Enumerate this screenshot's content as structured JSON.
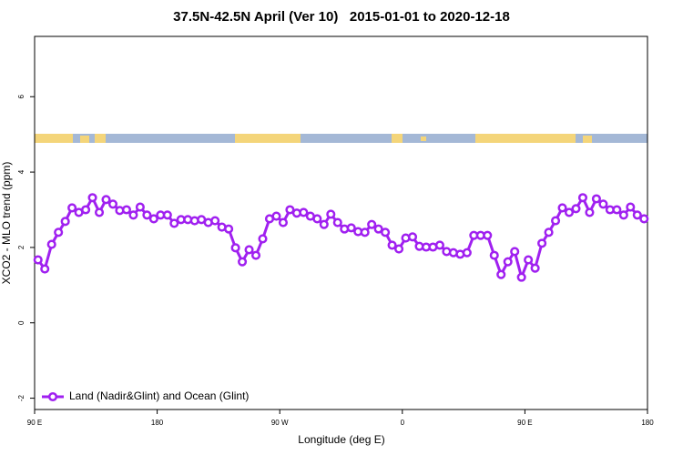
{
  "chart_data": {
    "type": "line",
    "title": "37.5N-42.5N April (Ver 10)   2015-01-01 to 2020-12-18",
    "x_label": "Longitude (deg E)",
    "y_label": "XCO2 - MLO trend (ppm)",
    "xlim": [
      90,
      540
    ],
    "xticks": [
      {
        "value": 90,
        "label": "90 E"
      },
      180,
      {
        "value": 270,
        "label": "90 W"
      },
      {
        "value": 360,
        "label": "0"
      },
      {
        "value": 450,
        "label": "90 E"
      },
      {
        "value": 540,
        "label": "180"
      }
    ],
    "ylim": [
      -2.3,
      7.6
    ],
    "yticks": [
      -2,
      0,
      2,
      4,
      6
    ],
    "legend": "bottom-left",
    "x": [
      92.5,
      97.5,
      102.5,
      107.5,
      112.5,
      117.5,
      122.5,
      127.5,
      132.5,
      137.5,
      142.5,
      147.5,
      152.5,
      157.5,
      162.5,
      167.5,
      172.5,
      177.5,
      182.5,
      187.5,
      192.5,
      197.5,
      202.5,
      207.5,
      212.5,
      217.5,
      222.5,
      227.5,
      232.5,
      237.5,
      242.5,
      247.5,
      252.5,
      257.5,
      262.5,
      267.5,
      272.5,
      277.5,
      282.5,
      287.5,
      292.5,
      297.5,
      302.5,
      307.5,
      312.5,
      317.5,
      322.5,
      327.5,
      332.5,
      337.5,
      342.5,
      347.5,
      352.5,
      357.5,
      362.5,
      367.5,
      372.5,
      377.5,
      382.5,
      387.5,
      392.5,
      397.5,
      402.5,
      407.5,
      412.5,
      417.5,
      422.5,
      427.5,
      432.5,
      437.5,
      442.5,
      447.5,
      452.5,
      457.5,
      462.5,
      467.5,
      472.5,
      477.5,
      482.5,
      487.5,
      492.5,
      497.5,
      502.5,
      507.5,
      512.5,
      517.5,
      522.5,
      527.5,
      532.5,
      537.5
    ],
    "series": [
      {
        "name": "Land (Nadir&Glint) and Ocean (Glint)",
        "color": "#a020f0",
        "values": [
          1.67,
          1.43,
          2.08,
          2.4,
          2.69,
          3.05,
          2.93,
          3.0,
          3.32,
          2.93,
          3.27,
          3.15,
          2.98,
          3.0,
          2.86,
          3.07,
          2.86,
          2.76,
          2.86,
          2.86,
          2.64,
          2.74,
          2.74,
          2.71,
          2.74,
          2.66,
          2.71,
          2.54,
          2.49,
          1.99,
          1.62,
          1.94,
          1.79,
          2.23,
          2.76,
          2.83,
          2.66,
          3.0,
          2.91,
          2.93,
          2.83,
          2.76,
          2.61,
          2.88,
          2.66,
          2.49,
          2.52,
          2.42,
          2.4,
          2.61,
          2.49,
          2.4,
          2.06,
          1.96,
          2.25,
          2.28,
          2.03,
          2.01,
          2.01,
          2.06,
          1.89,
          1.86,
          1.82,
          1.86,
          2.32,
          2.32,
          2.32,
          1.79,
          1.28,
          1.62,
          1.89,
          1.21,
          1.67,
          1.45,
          2.11,
          2.4,
          2.71,
          3.05,
          2.93,
          3.03,
          3.32,
          2.93,
          3.29,
          3.15,
          3.0,
          3.0,
          2.86,
          3.07,
          2.86,
          2.76
        ]
      }
    ]
  }
}
